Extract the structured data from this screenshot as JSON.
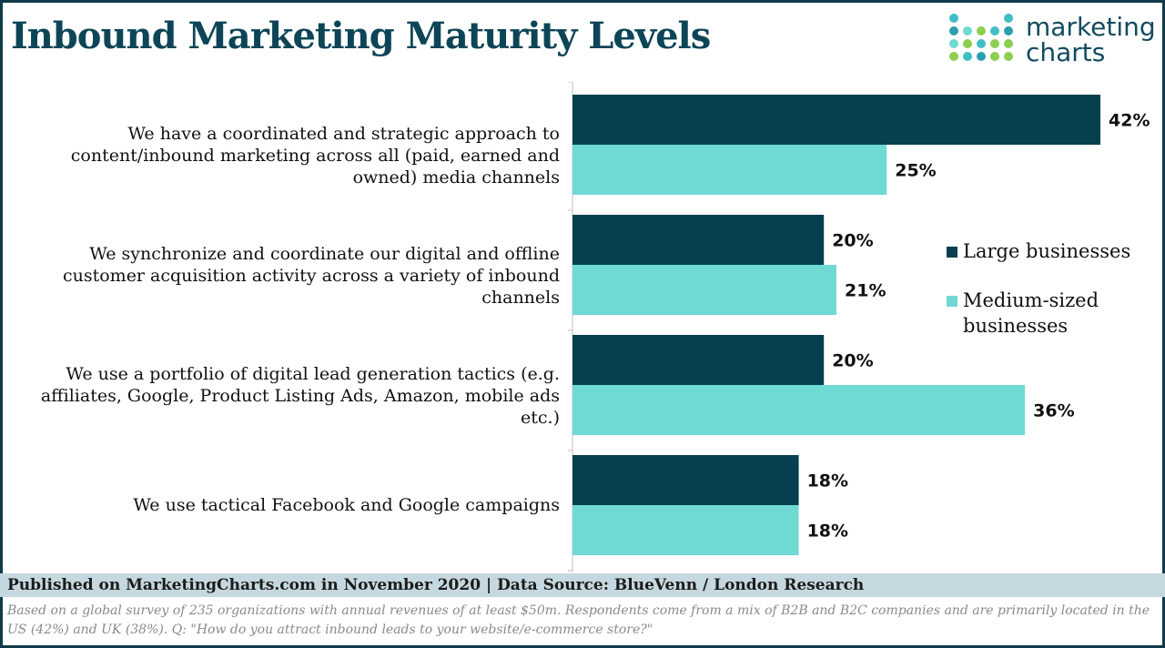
{
  "header": {
    "title": "Inbound Marketing Maturity Levels",
    "logo_line1": "marketing",
    "logo_line2": "charts"
  },
  "legend": {
    "items": [
      {
        "label": "Large businesses",
        "color": "#073f51"
      },
      {
        "label": "Medium-sized businesses",
        "color": "#6fdad4"
      }
    ]
  },
  "chart_data": {
    "type": "bar",
    "orientation": "horizontal",
    "categories": [
      "We have a coordinated and strategic approach to content/inbound marketing across all (paid, earned and owned) media channels",
      "We synchronize and coordinate our digital and offline customer acquisition activity across a variety of inbound channels",
      "We use a portfolio of digital lead generation tactics (e.g. affiliates, Google, Product Listing Ads, Amazon, mobile ads etc.)",
      "We use tactical Facebook and Google campaigns"
    ],
    "series": [
      {
        "name": "Large businesses",
        "values": [
          42,
          20,
          20,
          18
        ],
        "labels": [
          "42%",
          "20%",
          "20%",
          "18%"
        ],
        "color": "#073f51"
      },
      {
        "name": "Medium-sized businesses",
        "values": [
          25,
          21,
          36,
          18
        ],
        "labels": [
          "25%",
          "21%",
          "36%",
          "18%"
        ],
        "color": "#6fdad4"
      }
    ],
    "xlim": [
      0,
      45
    ],
    "grid": false,
    "legend_position": "right",
    "title": "Inbound Marketing Maturity Levels"
  },
  "footer": {
    "source": "Published on MarketingCharts.com in November 2020 | Data Source: BlueVenn / London Research",
    "note": "Based on a global survey of 235 organizations with annual revenues of at least $50m. Respondents come from a mix of B2B and B2C companies and are primarily located in the US (42%) and UK (38%). Q: \"How do you attract inbound leads to your website/e-commerce store?\""
  }
}
